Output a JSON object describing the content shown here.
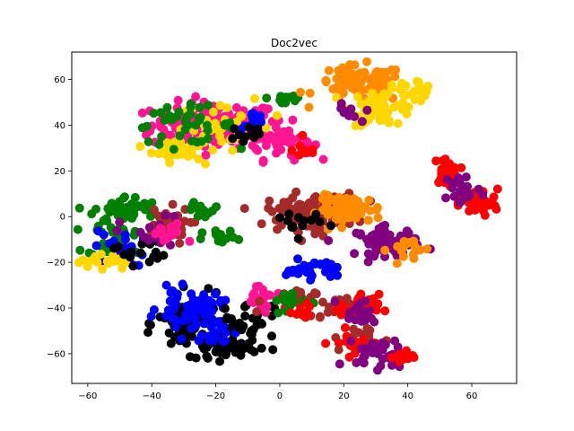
{
  "chart_data": {
    "type": "scatter",
    "title": "Doc2vec",
    "xlabel": "",
    "ylabel": "",
    "xlim": [
      -65,
      74
    ],
    "ylim": [
      -73,
      72
    ],
    "xticks": [
      -60,
      -40,
      -20,
      0,
      20,
      40,
      60
    ],
    "yticks": [
      -60,
      -40,
      -20,
      0,
      20,
      40,
      60
    ],
    "grid": false,
    "legend": "none",
    "colors": {
      "deeppink": "#FF1493",
      "gold": "#FFD700",
      "darkorange": "#FF8C00",
      "green": "#008000",
      "blue": "#0000FF",
      "black": "#000000",
      "red": "#FF0000",
      "brown": "#A52A2A",
      "purple": "#800080"
    },
    "clusters": [
      {
        "color": "deeppink",
        "cx": -20,
        "cy": 40,
        "sx": 10,
        "sy": 5,
        "n": 170
      },
      {
        "color": "deeppink",
        "cx": 0,
        "cy": 33,
        "sx": 5,
        "sy": 4,
        "n": 40
      },
      {
        "color": "gold",
        "cx": -32,
        "cy": 30,
        "sx": 4,
        "sy": 3,
        "n": 40
      },
      {
        "color": "gold",
        "cx": -15,
        "cy": 40,
        "sx": 8,
        "sy": 5,
        "n": 35
      },
      {
        "color": "green",
        "cx": -30,
        "cy": 40,
        "sx": 8,
        "sy": 4,
        "n": 40
      },
      {
        "color": "blue",
        "cx": -8,
        "cy": 42,
        "sx": 2,
        "sy": 2,
        "n": 10
      },
      {
        "color": "black",
        "cx": -10,
        "cy": 36,
        "sx": 3,
        "sy": 3,
        "n": 12
      },
      {
        "color": "green",
        "cx": 2,
        "cy": 52,
        "sx": 3,
        "sy": 2,
        "n": 12
      },
      {
        "color": "red",
        "cx": 8,
        "cy": 29,
        "sx": 2,
        "sy": 2,
        "n": 10
      },
      {
        "color": "darkorange",
        "cx": 25,
        "cy": 58,
        "sx": 7,
        "sy": 4,
        "n": 80
      },
      {
        "color": "gold",
        "cx": 32,
        "cy": 48,
        "sx": 5,
        "sy": 4,
        "n": 60
      },
      {
        "color": "gold",
        "cx": 42,
        "cy": 56,
        "sx": 3,
        "sy": 2,
        "n": 20
      },
      {
        "color": "purple",
        "cx": 21,
        "cy": 45,
        "sx": 2,
        "sy": 2,
        "n": 10
      },
      {
        "color": "red",
        "cx": 52,
        "cy": 20,
        "sx": 2,
        "sy": 3,
        "n": 30
      },
      {
        "color": "red",
        "cx": 62,
        "cy": 6,
        "sx": 3,
        "sy": 3,
        "n": 50
      },
      {
        "color": "purple",
        "cx": 57,
        "cy": 12,
        "sx": 3,
        "sy": 4,
        "n": 25
      },
      {
        "color": "green",
        "cx": -48,
        "cy": 3,
        "sx": 5,
        "sy": 3,
        "n": 50
      },
      {
        "color": "green",
        "cx": -50,
        "cy": -10,
        "sx": 5,
        "sy": 4,
        "n": 40
      },
      {
        "color": "brown",
        "cx": -36,
        "cy": -4,
        "sx": 4,
        "sy": 4,
        "n": 40
      },
      {
        "color": "blue",
        "cx": -50,
        "cy": -14,
        "sx": 4,
        "sy": 4,
        "n": 25
      },
      {
        "color": "gold",
        "cx": -55,
        "cy": -20,
        "sx": 4,
        "sy": 2,
        "n": 20
      },
      {
        "color": "black",
        "cx": -44,
        "cy": -15,
        "sx": 4,
        "sy": 3,
        "n": 15
      },
      {
        "color": "purple",
        "cx": -40,
        "cy": -8,
        "sx": 5,
        "sy": 4,
        "n": 20
      },
      {
        "color": "green",
        "cx": -24,
        "cy": 3,
        "sx": 3,
        "sy": 2,
        "n": 15
      },
      {
        "color": "green",
        "cx": -18,
        "cy": -10,
        "sx": 3,
        "sy": 2,
        "n": 12
      },
      {
        "color": "deeppink",
        "cx": -35,
        "cy": -8,
        "sx": 3,
        "sy": 3,
        "n": 12
      },
      {
        "color": "brown",
        "cx": 10,
        "cy": 2,
        "sx": 7,
        "sy": 4,
        "n": 110
      },
      {
        "color": "darkorange",
        "cx": 22,
        "cy": 3,
        "sx": 5,
        "sy": 3,
        "n": 70
      },
      {
        "color": "purple",
        "cx": 34,
        "cy": -11,
        "sx": 5,
        "sy": 3,
        "n": 60
      },
      {
        "color": "darkorange",
        "cx": 40,
        "cy": -14,
        "sx": 3,
        "sy": 3,
        "n": 20
      },
      {
        "color": "black",
        "cx": 5,
        "cy": -3,
        "sx": 4,
        "sy": 3,
        "n": 15
      },
      {
        "color": "blue",
        "cx": 10,
        "cy": -23,
        "sx": 4,
        "sy": 2,
        "n": 35
      },
      {
        "color": "black",
        "cx": -28,
        "cy": -47,
        "sx": 5,
        "sy": 6,
        "n": 90
      },
      {
        "color": "black",
        "cx": -17,
        "cy": -57,
        "sx": 5,
        "sy": 3,
        "n": 60
      },
      {
        "color": "blue",
        "cx": -28,
        "cy": -40,
        "sx": 5,
        "sy": 4,
        "n": 55
      },
      {
        "color": "blue",
        "cx": -20,
        "cy": -50,
        "sx": 4,
        "sy": 3,
        "n": 20
      },
      {
        "color": "black",
        "cx": -10,
        "cy": -45,
        "sx": 4,
        "sy": 4,
        "n": 25
      },
      {
        "color": "deeppink",
        "cx": -5,
        "cy": -35,
        "sx": 4,
        "sy": 3,
        "n": 25
      },
      {
        "color": "brown",
        "cx": 3,
        "cy": -37,
        "sx": 4,
        "sy": 3,
        "n": 20
      },
      {
        "color": "green",
        "cx": 2,
        "cy": -37,
        "sx": 3,
        "sy": 3,
        "n": 12
      },
      {
        "color": "red",
        "cx": 7,
        "cy": -42,
        "sx": 2,
        "sy": 2,
        "n": 12
      },
      {
        "color": "brown",
        "cx": 17,
        "cy": -40,
        "sx": 3,
        "sy": 2,
        "n": 15
      },
      {
        "color": "red",
        "cx": 25,
        "cy": -40,
        "sx": 3,
        "sy": 3,
        "n": 30
      },
      {
        "color": "purple",
        "cx": 25,
        "cy": -42,
        "sx": 3,
        "sy": 3,
        "n": 20
      },
      {
        "color": "brown",
        "cx": 25,
        "cy": -54,
        "sx": 4,
        "sy": 3,
        "n": 20
      },
      {
        "color": "red",
        "cx": 24,
        "cy": -55,
        "sx": 4,
        "sy": 3,
        "n": 15
      },
      {
        "color": "purple",
        "cx": 32,
        "cy": -60,
        "sx": 4,
        "sy": 3,
        "n": 40
      },
      {
        "color": "red",
        "cx": 38,
        "cy": -61,
        "sx": 2,
        "sy": 2,
        "n": 10
      }
    ]
  }
}
